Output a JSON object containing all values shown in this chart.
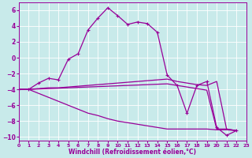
{
  "xlabel": "Windchill (Refroidissement éolien,°C)",
  "xlim": [
    0,
    23
  ],
  "ylim": [
    -10.5,
    7.0
  ],
  "yticks": [
    -10,
    -8,
    -6,
    -4,
    -2,
    0,
    2,
    4,
    6
  ],
  "xticks": [
    0,
    1,
    2,
    3,
    4,
    5,
    6,
    7,
    8,
    9,
    10,
    11,
    12,
    13,
    14,
    15,
    16,
    17,
    18,
    19,
    20,
    21,
    22,
    23
  ],
  "bg_color": "#c8eaea",
  "grid_color": "#ffffff",
  "line_color": "#990099",
  "line1": [
    -4.0,
    -4.0,
    -3.2,
    -2.6,
    -2.8,
    -0.2,
    0.5,
    3.5,
    5.0,
    6.3,
    5.3,
    4.2,
    4.5,
    4.3,
    3.2,
    -2.2,
    -3.5,
    -7.0,
    -3.5,
    -3.0,
    -8.8,
    -9.8,
    -9.2
  ],
  "line2": [
    -4.0,
    -4.0,
    -3.9,
    -3.8,
    -3.8,
    -3.7,
    -3.6,
    -3.5,
    -3.4,
    -3.3,
    -3.2,
    -3.1,
    -3.0,
    -2.9,
    -2.8,
    -2.7,
    -3.0,
    -3.2,
    -3.4,
    -3.5,
    -3.0,
    -9.0,
    -9.2
  ],
  "line3": [
    -4.0,
    -4.0,
    -3.95,
    -3.9,
    -3.85,
    -3.8,
    -3.75,
    -3.7,
    -3.65,
    -3.6,
    -3.55,
    -3.5,
    -3.45,
    -3.4,
    -3.35,
    -3.3,
    -3.5,
    -3.7,
    -3.9,
    -4.1,
    -9.0,
    -9.0,
    -9.2
  ],
  "line4": [
    -4.0,
    -4.0,
    -4.5,
    -5.0,
    -5.5,
    -6.0,
    -6.5,
    -7.0,
    -7.3,
    -7.7,
    -8.0,
    -8.2,
    -8.4,
    -8.6,
    -8.8,
    -9.0,
    -9.0,
    -9.0,
    -9.0,
    -9.0,
    -9.1,
    -9.1,
    -9.2
  ]
}
